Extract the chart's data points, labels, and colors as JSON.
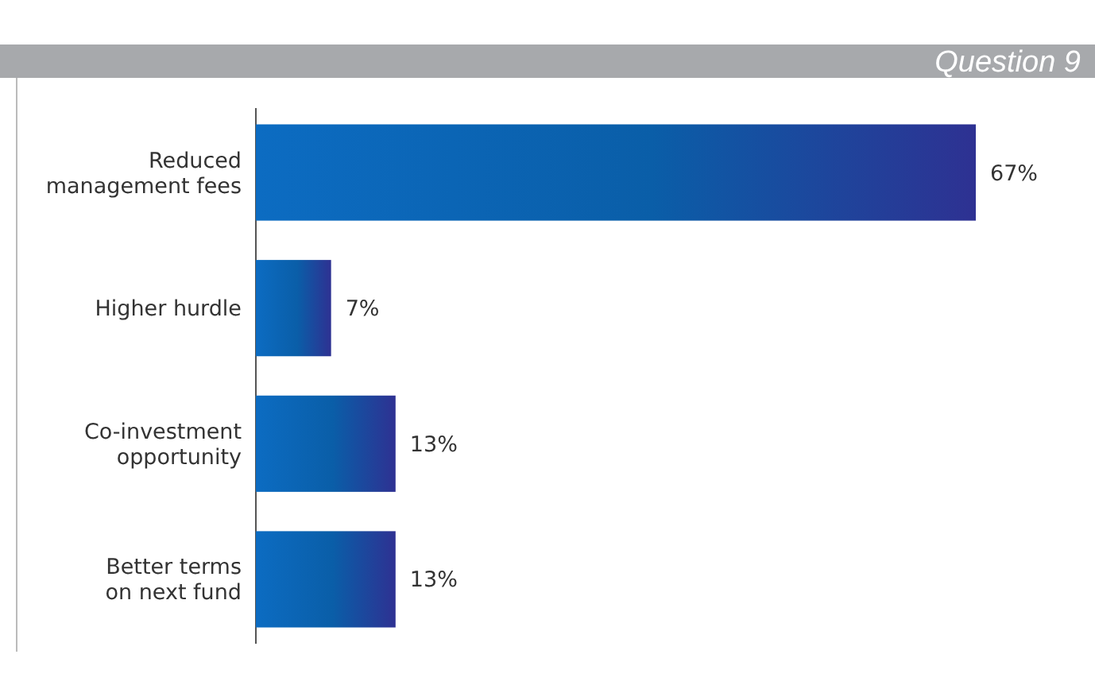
{
  "chart_data": {
    "type": "bar",
    "orientation": "horizontal",
    "title": "Question 9",
    "categories": [
      "Reduced\nmanagement fees",
      "Higher hurdle",
      "Co-investment\nopportunity",
      "Better terms\non next fund"
    ],
    "values": [
      67,
      7,
      13,
      13
    ],
    "value_labels": [
      "67%",
      "7%",
      "13%",
      "13%"
    ],
    "color": "#0a5ea8"
  }
}
